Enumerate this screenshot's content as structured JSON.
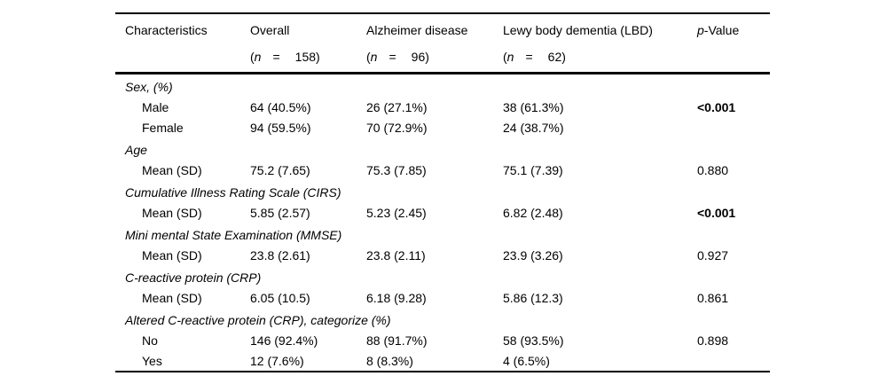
{
  "table": {
    "header": {
      "characteristics": "Characteristics",
      "paren_open": "(",
      "n_symbol": "n",
      "equals": "=",
      "paren_close": ")",
      "groups": [
        {
          "name": "Overall",
          "n": "158"
        },
        {
          "name": "Alzheimer disease",
          "n": "96"
        },
        {
          "name": "Lewy body dementia (LBD)",
          "n": "62"
        }
      ],
      "pvalue_italic": "p",
      "pvalue_rest": "-Value"
    },
    "rows": [
      {
        "type": "section",
        "label": "Sex, (%)"
      },
      {
        "type": "data",
        "label": "Male",
        "values": [
          "64 (40.5%)",
          "26 (27.1%)",
          "38 (61.3%)"
        ],
        "p": "<0.001",
        "p_bold": true
      },
      {
        "type": "data",
        "label": "Female",
        "values": [
          "94 (59.5%)",
          "70 (72.9%)",
          "24 (38.7%)"
        ],
        "p": "",
        "p_bold": false
      },
      {
        "type": "section",
        "label": "Age"
      },
      {
        "type": "data",
        "label": "Mean (SD)",
        "values": [
          "75.2 (7.65)",
          "75.3 (7.85)",
          "75.1 (7.39)"
        ],
        "p": "0.880",
        "p_bold": false
      },
      {
        "type": "section",
        "label": "Cumulative Illness Rating Scale (CIRS)"
      },
      {
        "type": "data",
        "label": "Mean (SD)",
        "values": [
          "5.85 (2.57)",
          "5.23 (2.45)",
          "6.82 (2.48)"
        ],
        "p": "<0.001",
        "p_bold": true
      },
      {
        "type": "section",
        "label": "Mini mental State Examination (MMSE)"
      },
      {
        "type": "data",
        "label": "Mean (SD)",
        "values": [
          "23.8 (2.61)",
          "23.8 (2.11)",
          "23.9 (3.26)"
        ],
        "p": "0.927",
        "p_bold": false
      },
      {
        "type": "section",
        "label": "C-reactive protein (CRP)"
      },
      {
        "type": "data",
        "label": "Mean (SD)",
        "values": [
          "6.05 (10.5)",
          "6.18 (9.28)",
          "5.86 (12.3)"
        ],
        "p": "0.861",
        "p_bold": false
      },
      {
        "type": "section",
        "label": "Altered C-reactive protein (CRP), categorize (%)"
      },
      {
        "type": "data",
        "label": "No",
        "values": [
          "146 (92.4%)",
          "88 (91.7%)",
          "58 (93.5%)"
        ],
        "p": "0.898",
        "p_bold": false
      },
      {
        "type": "data",
        "label": "Yes",
        "values": [
          "12 (7.6%)",
          "8 (8.3%)",
          "4 (6.5%)"
        ],
        "p": "",
        "p_bold": false
      }
    ]
  }
}
